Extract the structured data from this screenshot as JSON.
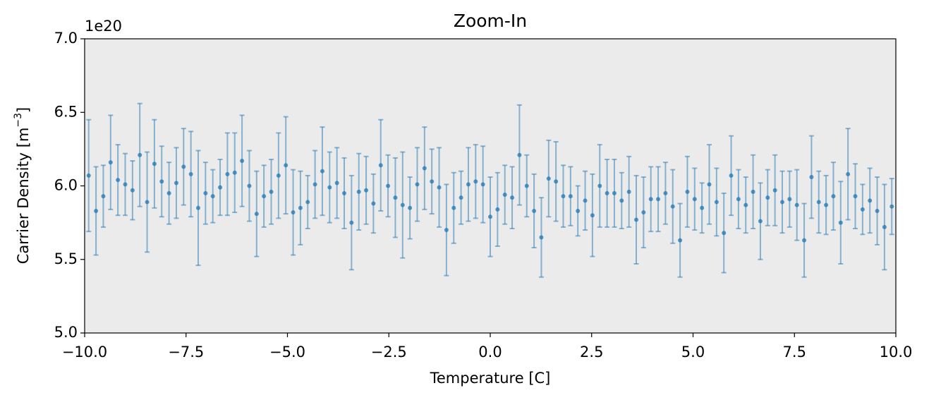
{
  "chart_data": {
    "type": "errorbar",
    "title": "Zoom-In",
    "xlabel": "Temperature [C]",
    "ylabel_parts": [
      "Carrier Density [m",
      "−3",
      "]"
    ],
    "scale_label": "1e20",
    "color": "#1f77b4",
    "background": "#ebebeb",
    "xlim": [
      -10,
      10
    ],
    "ylim": [
      5,
      7
    ],
    "xticks": [
      {
        "value": -10,
        "label": "−10.0"
      },
      {
        "value": -7.5,
        "label": "−7.5"
      },
      {
        "value": -5,
        "label": "−5.0"
      },
      {
        "value": -2.5,
        "label": "−2.5"
      },
      {
        "value": 0,
        "label": "0.0"
      },
      {
        "value": 2.5,
        "label": "2.5"
      },
      {
        "value": 5,
        "label": "5.0"
      },
      {
        "value": 7.5,
        "label": "7.5"
      },
      {
        "value": 10,
        "label": "10.0"
      }
    ],
    "yticks": [
      {
        "value": 5,
        "label": "5.0"
      },
      5.5,
      {
        "value": 6,
        "label": "6.0"
      },
      6.5,
      {
        "value": 7,
        "label": "7.0"
      }
    ],
    "x": [
      -9.9,
      -9.72,
      -9.54,
      -9.36,
      -9.18,
      -9.0,
      -8.82,
      -8.64,
      -8.46,
      -8.28,
      -8.1,
      -7.92,
      -7.74,
      -7.56,
      -7.38,
      -7.2,
      -7.02,
      -6.84,
      -6.66,
      -6.48,
      -6.3,
      -6.12,
      -5.94,
      -5.76,
      -5.58,
      -5.4,
      -5.22,
      -5.04,
      -4.86,
      -4.68,
      -4.5,
      -4.32,
      -4.14,
      -3.96,
      -3.78,
      -3.6,
      -3.42,
      -3.24,
      -3.06,
      -2.88,
      -2.7,
      -2.52,
      -2.34,
      -2.16,
      -1.98,
      -1.8,
      -1.62,
      -1.44,
      -1.26,
      -1.08,
      -0.9,
      -0.72,
      -0.54,
      -0.36,
      -0.18,
      0,
      0.18,
      0.36,
      0.54,
      0.72,
      0.9,
      1.08,
      1.26,
      1.44,
      1.62,
      1.8,
      1.98,
      2.16,
      2.34,
      2.52,
      2.7,
      2.88,
      3.06,
      3.24,
      3.42,
      3.6,
      3.78,
      3.96,
      4.14,
      4.32,
      4.5,
      4.68,
      4.86,
      5.04,
      5.22,
      5.4,
      5.58,
      5.76,
      5.94,
      6.12,
      6.3,
      6.48,
      6.66,
      6.84,
      7.02,
      7.2,
      7.38,
      7.56,
      7.74,
      7.92,
      8.1,
      8.28,
      8.46,
      8.64,
      8.82,
      9.0,
      9.18,
      9.36,
      9.54,
      9.72,
      9.9
    ],
    "values": [
      6.07,
      5.83,
      5.93,
      6.16,
      6.04,
      6.01,
      5.97,
      6.21,
      5.89,
      6.15,
      6.03,
      5.95,
      6.02,
      6.13,
      6.08,
      5.85,
      5.95,
      5.93,
      5.99,
      6.08,
      6.09,
      6.17,
      6.0,
      5.81,
      5.93,
      5.96,
      6.07,
      6.14,
      5.82,
      5.85,
      5.89,
      6.01,
      6.1,
      5.99,
      6.02,
      5.95,
      5.75,
      5.96,
      5.97,
      5.88,
      6.14,
      6.0,
      5.92,
      5.87,
      5.85,
      6.01,
      6.12,
      6.03,
      5.99,
      5.7,
      5.85,
      5.92,
      6.01,
      6.03,
      6.01,
      5.79,
      5.84,
      5.94,
      5.92,
      6.21,
      6.0,
      5.83,
      5.65,
      6.05,
      6.03,
      5.93,
      5.93,
      5.83,
      5.9,
      5.8,
      6.0,
      5.95,
      5.95,
      5.9,
      5.96,
      5.77,
      5.82,
      5.91,
      5.91,
      5.95,
      5.86,
      5.63,
      5.96,
      5.91,
      5.85,
      6.01,
      5.89,
      5.68,
      6.07,
      5.91,
      5.87,
      5.96,
      5.76,
      5.92,
      5.97,
      5.89,
      5.91,
      5.87,
      5.63,
      6.06,
      5.89,
      5.87,
      5.93,
      5.75,
      6.08,
      5.93,
      5.84,
      5.9,
      5.83,
      5.72,
      5.86
    ],
    "errors": [
      0.38,
      0.3,
      0.21,
      0.32,
      0.24,
      0.21,
      0.2,
      0.35,
      0.34,
      0.3,
      0.24,
      0.21,
      0.24,
      0.26,
      0.29,
      0.39,
      0.21,
      0.18,
      0.19,
      0.28,
      0.27,
      0.31,
      0.24,
      0.29,
      0.21,
      0.22,
      0.29,
      0.33,
      0.29,
      0.25,
      0.18,
      0.23,
      0.3,
      0.24,
      0.24,
      0.24,
      0.32,
      0.26,
      0.23,
      0.2,
      0.31,
      0.21,
      0.27,
      0.36,
      0.21,
      0.25,
      0.28,
      0.22,
      0.27,
      0.31,
      0.24,
      0.18,
      0.25,
      0.25,
      0.26,
      0.27,
      0.25,
      0.2,
      0.21,
      0.34,
      0.21,
      0.25,
      0.27,
      0.26,
      0.27,
      0.21,
      0.2,
      0.17,
      0.2,
      0.28,
      0.28,
      0.23,
      0.23,
      0.19,
      0.24,
      0.3,
      0.24,
      0.22,
      0.22,
      0.21,
      0.25,
      0.25,
      0.24,
      0.21,
      0.17,
      0.27,
      0.23,
      0.27,
      0.27,
      0.2,
      0.19,
      0.25,
      0.26,
      0.19,
      0.24,
      0.21,
      0.19,
      0.24,
      0.25,
      0.28,
      0.21,
      0.2,
      0.23,
      0.28,
      0.31,
      0.22,
      0.17,
      0.22,
      0.23,
      0.29,
      0.19
    ]
  }
}
